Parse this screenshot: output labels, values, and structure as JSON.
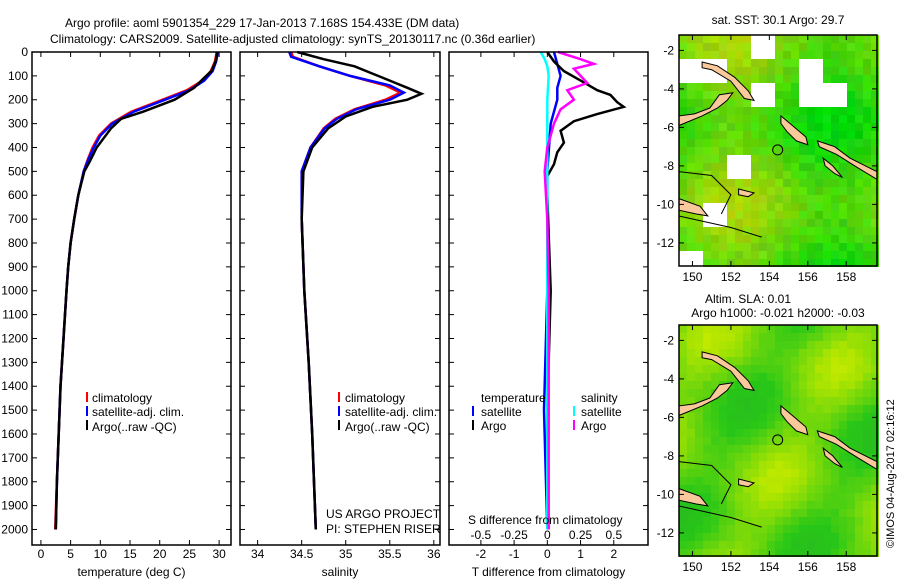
{
  "title": {
    "line1": "Argo profile: aoml 5901354_229 17-Jan-2013 7.168S 154.433E (DM data)",
    "line2": "Climatology: CARS2009. Satellite-adjusted climatology: synTS_20130117.nc (0.36d earlier)"
  },
  "credit": "US ARGO PROJECT",
  "pi": "PI: STEPHEN RISER",
  "timestamp": "©IMOS 04-Aug-2017 02:16:12",
  "colors": {
    "climatology": "#ff0000",
    "satellite": "#0000ff",
    "argo": "#000000",
    "sal_satellite": "#00ffff",
    "sal_argo": "#ff00ff",
    "land": "#f9c89b"
  },
  "chart_data": [
    {
      "type": "line",
      "name": "temperature-profile",
      "xlabel": "temperature (deg C)",
      "ylabel": "",
      "xlim": [
        -1.5,
        32
      ],
      "ylim": [
        2065,
        0
      ],
      "xticks": [
        "0",
        "5",
        "10",
        "15",
        "20",
        "25",
        "30"
      ],
      "xtick_values": [
        0,
        5,
        10,
        15,
        20,
        25,
        30
      ],
      "yticks": [
        "0",
        "100",
        "200",
        "300",
        "400",
        "500",
        "600",
        "700",
        "800",
        "900",
        "1000",
        "1100",
        "1200",
        "1300",
        "1400",
        "1500",
        "1600",
        "1700",
        "1800",
        "1900",
        "2000"
      ],
      "ytick_values": [
        0,
        100,
        200,
        300,
        400,
        500,
        600,
        700,
        800,
        900,
        1000,
        1100,
        1200,
        1300,
        1400,
        1500,
        1600,
        1700,
        1800,
        1900,
        2000
      ],
      "legend": [
        "climatology",
        "satellite-adj. clim.",
        "Argo(..raw -QC)"
      ],
      "series": [
        {
          "name": "climatology",
          "color": "#ff0000",
          "points": [
            [
              0,
              29.6
            ],
            [
              40,
              29.3
            ],
            [
              80,
              28.6
            ],
            [
              120,
              27.2
            ],
            [
              160,
              24.6
            ],
            [
              200,
              20.5
            ],
            [
              250,
              15.2
            ],
            [
              300,
              11.8
            ],
            [
              350,
              9.8
            ],
            [
              400,
              8.7
            ],
            [
              450,
              7.9
            ],
            [
              500,
              7.2
            ],
            [
              600,
              6.3
            ],
            [
              700,
              5.6
            ],
            [
              800,
              5.0
            ],
            [
              900,
              4.6
            ],
            [
              1000,
              4.3
            ],
            [
              1200,
              3.8
            ],
            [
              1400,
              3.3
            ],
            [
              1600,
              3.0
            ],
            [
              1800,
              2.7
            ],
            [
              2000,
              2.4
            ]
          ]
        },
        {
          "name": "satellite-adj. clim.",
          "color": "#0000ff",
          "points": [
            [
              0,
              29.8
            ],
            [
              40,
              29.5
            ],
            [
              80,
              28.9
            ],
            [
              120,
              27.5
            ],
            [
              160,
              25.0
            ],
            [
              200,
              20.9
            ],
            [
              250,
              15.6
            ],
            [
              300,
              12.0
            ],
            [
              350,
              10.0
            ],
            [
              400,
              8.9
            ],
            [
              450,
              8.0
            ],
            [
              500,
              7.2
            ],
            [
              600,
              6.3
            ],
            [
              700,
              5.6
            ],
            [
              800,
              5.0
            ],
            [
              900,
              4.6
            ],
            [
              1000,
              4.3
            ],
            [
              1200,
              3.8
            ],
            [
              1400,
              3.3
            ],
            [
              1600,
              3.0
            ],
            [
              1800,
              2.7
            ],
            [
              2000,
              2.5
            ]
          ]
        },
        {
          "name": "Argo(..raw -QC)",
          "color": "#000000",
          "points": [
            [
              0,
              29.7
            ],
            [
              40,
              29.4
            ],
            [
              80,
              28.7
            ],
            [
              110,
              27.4
            ],
            [
              150,
              25.8
            ],
            [
              200,
              22.5
            ],
            [
              250,
              17.2
            ],
            [
              280,
              13.5
            ],
            [
              320,
              11.8
            ],
            [
              400,
              9.4
            ],
            [
              460,
              8.2
            ],
            [
              500,
              7.3
            ],
            [
              600,
              6.3
            ],
            [
              700,
              5.6
            ],
            [
              800,
              5.0
            ],
            [
              900,
              4.6
            ],
            [
              1000,
              4.3
            ],
            [
              1200,
              3.8
            ],
            [
              1400,
              3.3
            ],
            [
              1600,
              3.0
            ],
            [
              1800,
              2.7
            ],
            [
              2000,
              2.5
            ]
          ]
        }
      ]
    },
    {
      "type": "line",
      "name": "salinity-profile",
      "xlabel": "salinity",
      "xlim": [
        33.8,
        36.07
      ],
      "ylim": [
        2065,
        0
      ],
      "xticks": [
        "34",
        "34.5",
        "35",
        "35.5",
        "36"
      ],
      "xtick_values": [
        34,
        34.5,
        35,
        35.5,
        36
      ],
      "legend": [
        "climatology",
        "satellite-adj. clim.",
        "Argo(..raw -QC)"
      ],
      "series": [
        {
          "name": "climatology",
          "color": "#ff0000",
          "points": [
            [
              0,
              34.38
            ],
            [
              20,
              34.4
            ],
            [
              60,
              34.7
            ],
            [
              100,
              35.05
            ],
            [
              140,
              35.45
            ],
            [
              170,
              35.62
            ],
            [
              200,
              35.45
            ],
            [
              240,
              35.1
            ],
            [
              280,
              34.88
            ],
            [
              320,
              34.75
            ],
            [
              400,
              34.6
            ],
            [
              500,
              34.5
            ],
            [
              700,
              34.5
            ],
            [
              1000,
              34.53
            ],
            [
              1300,
              34.58
            ],
            [
              1600,
              34.62
            ],
            [
              2000,
              34.66
            ]
          ]
        },
        {
          "name": "satellite-adj. clim.",
          "color": "#0000ff",
          "points": [
            [
              0,
              34.36
            ],
            [
              20,
              34.38
            ],
            [
              60,
              34.7
            ],
            [
              100,
              35.05
            ],
            [
              140,
              35.5
            ],
            [
              170,
              35.66
            ],
            [
              200,
              35.5
            ],
            [
              240,
              35.12
            ],
            [
              280,
              34.9
            ],
            [
              320,
              34.76
            ],
            [
              400,
              34.6
            ],
            [
              500,
              34.5
            ],
            [
              700,
              34.5
            ],
            [
              1000,
              34.53
            ],
            [
              1300,
              34.58
            ],
            [
              1600,
              34.62
            ],
            [
              2000,
              34.66
            ]
          ]
        },
        {
          "name": "Argo(..raw -QC)",
          "color": "#000000",
          "points": [
            [
              0,
              34.45
            ],
            [
              30,
              34.75
            ],
            [
              60,
              35.1
            ],
            [
              90,
              35.3
            ],
            [
              120,
              35.5
            ],
            [
              150,
              35.7
            ],
            [
              175,
              35.86
            ],
            [
              200,
              35.7
            ],
            [
              230,
              35.3
            ],
            [
              270,
              35.0
            ],
            [
              320,
              34.8
            ],
            [
              400,
              34.62
            ],
            [
              500,
              34.52
            ],
            [
              700,
              34.5
            ],
            [
              1000,
              34.53
            ],
            [
              1300,
              34.58
            ],
            [
              1600,
              34.62
            ],
            [
              2000,
              34.66
            ]
          ]
        }
      ]
    },
    {
      "type": "line",
      "name": "difference-profile",
      "xlabel": "T difference from climatology",
      "x2label": "S difference from climatology",
      "xlim": [
        -2.96,
        3.03
      ],
      "ylim": [
        2065,
        0
      ],
      "xticks": [
        "-2",
        "-1",
        "0",
        "1",
        "2"
      ],
      "xtick_values": [
        -2,
        -1,
        0,
        1,
        2
      ],
      "x2ticks": [
        "-0.5",
        "-0.25",
        "0",
        "0.25",
        "0.5"
      ],
      "x2tick_values": [
        -0.5,
        -0.25,
        0,
        0.25,
        0.5
      ],
      "legend_titles": [
        "temperature",
        "salinity"
      ],
      "legend": [
        "satellite",
        "Argo",
        "satellite",
        "Argo"
      ],
      "series": [
        {
          "name": "temperature satellite",
          "color": "#0000ff",
          "scale": "T",
          "points": [
            [
              0,
              0.2
            ],
            [
              50,
              0.3
            ],
            [
              100,
              0.4
            ],
            [
              150,
              0.3
            ],
            [
              200,
              0.3
            ],
            [
              300,
              0.1
            ],
            [
              500,
              0
            ],
            [
              1000,
              0
            ],
            [
              1500,
              -0.1
            ],
            [
              2000,
              0
            ]
          ]
        },
        {
          "name": "temperature Argo",
          "color": "#000000",
          "scale": "T",
          "points": [
            [
              0,
              0
            ],
            [
              40,
              0.2
            ],
            [
              80,
              0.5
            ],
            [
              120,
              1.0
            ],
            [
              160,
              1.5
            ],
            [
              180,
              1.9
            ],
            [
              210,
              2.1
            ],
            [
              230,
              2.3
            ],
            [
              260,
              1.5
            ],
            [
              290,
              0.8
            ],
            [
              330,
              0.4
            ],
            [
              380,
              0.5
            ],
            [
              420,
              0.3
            ],
            [
              470,
              0.2
            ],
            [
              520,
              0
            ],
            [
              600,
              0
            ],
            [
              1000,
              0.1
            ],
            [
              1500,
              0
            ],
            [
              2000,
              0
            ]
          ]
        },
        {
          "name": "salinity satellite",
          "color": "#00ffff",
          "scale": "S",
          "points": [
            [
              0,
              -0.05
            ],
            [
              30,
              -0.02
            ],
            [
              60,
              0
            ],
            [
              100,
              0.01
            ],
            [
              200,
              0
            ],
            [
              500,
              0
            ],
            [
              1000,
              0
            ],
            [
              2000,
              0
            ]
          ]
        },
        {
          "name": "salinity Argo",
          "color": "#ff00ff",
          "scale": "S",
          "points": [
            [
              0,
              0.08
            ],
            [
              30,
              0.25
            ],
            [
              50,
              0.35
            ],
            [
              70,
              0.2
            ],
            [
              100,
              0.25
            ],
            [
              130,
              0.3
            ],
            [
              160,
              0.15
            ],
            [
              200,
              0.2
            ],
            [
              240,
              0.1
            ],
            [
              300,
              0.05
            ],
            [
              400,
              0.0
            ],
            [
              500,
              -0.02
            ],
            [
              700,
              0
            ],
            [
              1000,
              0.01
            ],
            [
              2000,
              0.01
            ]
          ]
        }
      ]
    },
    {
      "type": "heatmap",
      "name": "sst-map",
      "title": "sat. SST: 30.1 Argo: 29.7",
      "xlim": [
        149.3,
        159.6
      ],
      "ylim": [
        -13.2,
        -1.2
      ],
      "xticks": [
        "150",
        "152",
        "154",
        "156",
        "158"
      ],
      "xtick_values": [
        150,
        152,
        154,
        156,
        158
      ],
      "yticks": [
        "-2",
        "-4",
        "-6",
        "-8",
        "-10",
        "-12"
      ],
      "ytick_values": [
        -2,
        -4,
        -6,
        -8,
        -10,
        -12
      ],
      "argo_location": [
        154.433,
        -7.168
      ]
    },
    {
      "type": "heatmap",
      "name": "sla-map",
      "title": "Altim. SLA: 0.01",
      "subtitle": "Argo h1000: -0.021 h2000: -0.03",
      "xlim": [
        149.3,
        159.6
      ],
      "ylim": [
        -13.2,
        -1.2
      ],
      "xticks": [
        "150",
        "152",
        "154",
        "156",
        "158"
      ],
      "xtick_values": [
        150,
        152,
        154,
        156,
        158
      ],
      "yticks": [
        "-2",
        "-4",
        "-6",
        "-8",
        "-10",
        "-12"
      ],
      "ytick_values": [
        -2,
        -4,
        -6,
        -8,
        -10,
        -12
      ],
      "argo_location": [
        154.433,
        -7.168
      ]
    }
  ]
}
